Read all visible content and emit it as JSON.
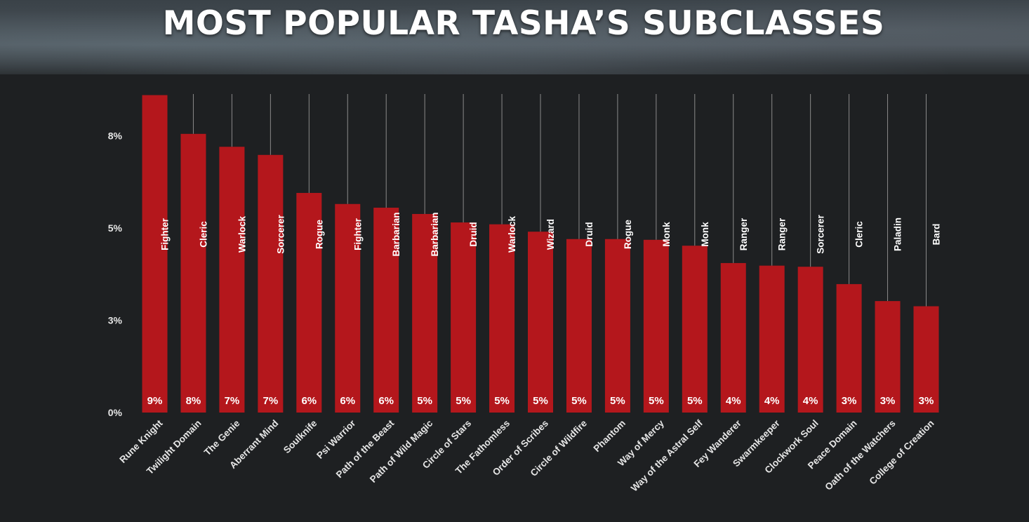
{
  "title": "MOST POPULAR TASHA’S SUBCLASSES",
  "colors": {
    "background": "#1e2022",
    "bar": "#b4171c",
    "text": "#ffffff",
    "line": "#8a8a8a"
  },
  "chart_data": {
    "type": "bar",
    "title": "MOST POPULAR TASHA’S SUBCLASSES",
    "xlabel": "",
    "ylabel": "",
    "ylim": [
      0,
      9.2
    ],
    "grid": false,
    "legend": "none",
    "y_ticks": [
      {
        "value": 0,
        "label": "0%"
      },
      {
        "value": 2.5,
        "label": "3%"
      },
      {
        "value": 5,
        "label": "5%"
      },
      {
        "value": 7.5,
        "label": "8%"
      }
    ],
    "categories": [
      "Rune Knight",
      "Twilight Domain",
      "The Genie",
      "Aberrant Mind",
      "Soulknife",
      "Psi Warrior",
      "Path of the Beast",
      "Path of Wild Magic",
      "Circle of Stars",
      "The Fathomless",
      "Order of Scribes",
      "Circle of Wildfire",
      "Phantom",
      "Way of Mercy",
      "Way of the Astral Self",
      "Fey Wanderer",
      "Swarmkeeper",
      "Clockwork Soul",
      "Peace Domain",
      "Oath of the Watchers",
      "College of Creation"
    ],
    "values": [
      8.6,
      7.55,
      7.2,
      6.98,
      5.95,
      5.65,
      5.55,
      5.38,
      5.15,
      5.1,
      4.9,
      4.7,
      4.7,
      4.68,
      4.52,
      4.05,
      3.98,
      3.95,
      3.48,
      3.02,
      2.88
    ],
    "data_labels": [
      "9%",
      "8%",
      "7%",
      "7%",
      "6%",
      "6%",
      "6%",
      "5%",
      "5%",
      "5%",
      "5%",
      "5%",
      "5%",
      "5%",
      "5%",
      "4%",
      "4%",
      "4%",
      "3%",
      "3%",
      "3%"
    ],
    "class_labels": [
      "Fighter",
      "Cleric",
      "Warlock",
      "Sorcerer",
      "Rogue",
      "Fighter",
      "Barbarian",
      "Barbarian",
      "Druid",
      "Warlock",
      "Wizard",
      "Druid",
      "Rogue",
      "Monk",
      "Monk",
      "Ranger",
      "Ranger",
      "Sorcerer",
      "Cleric",
      "Paladin",
      "Bard"
    ]
  }
}
